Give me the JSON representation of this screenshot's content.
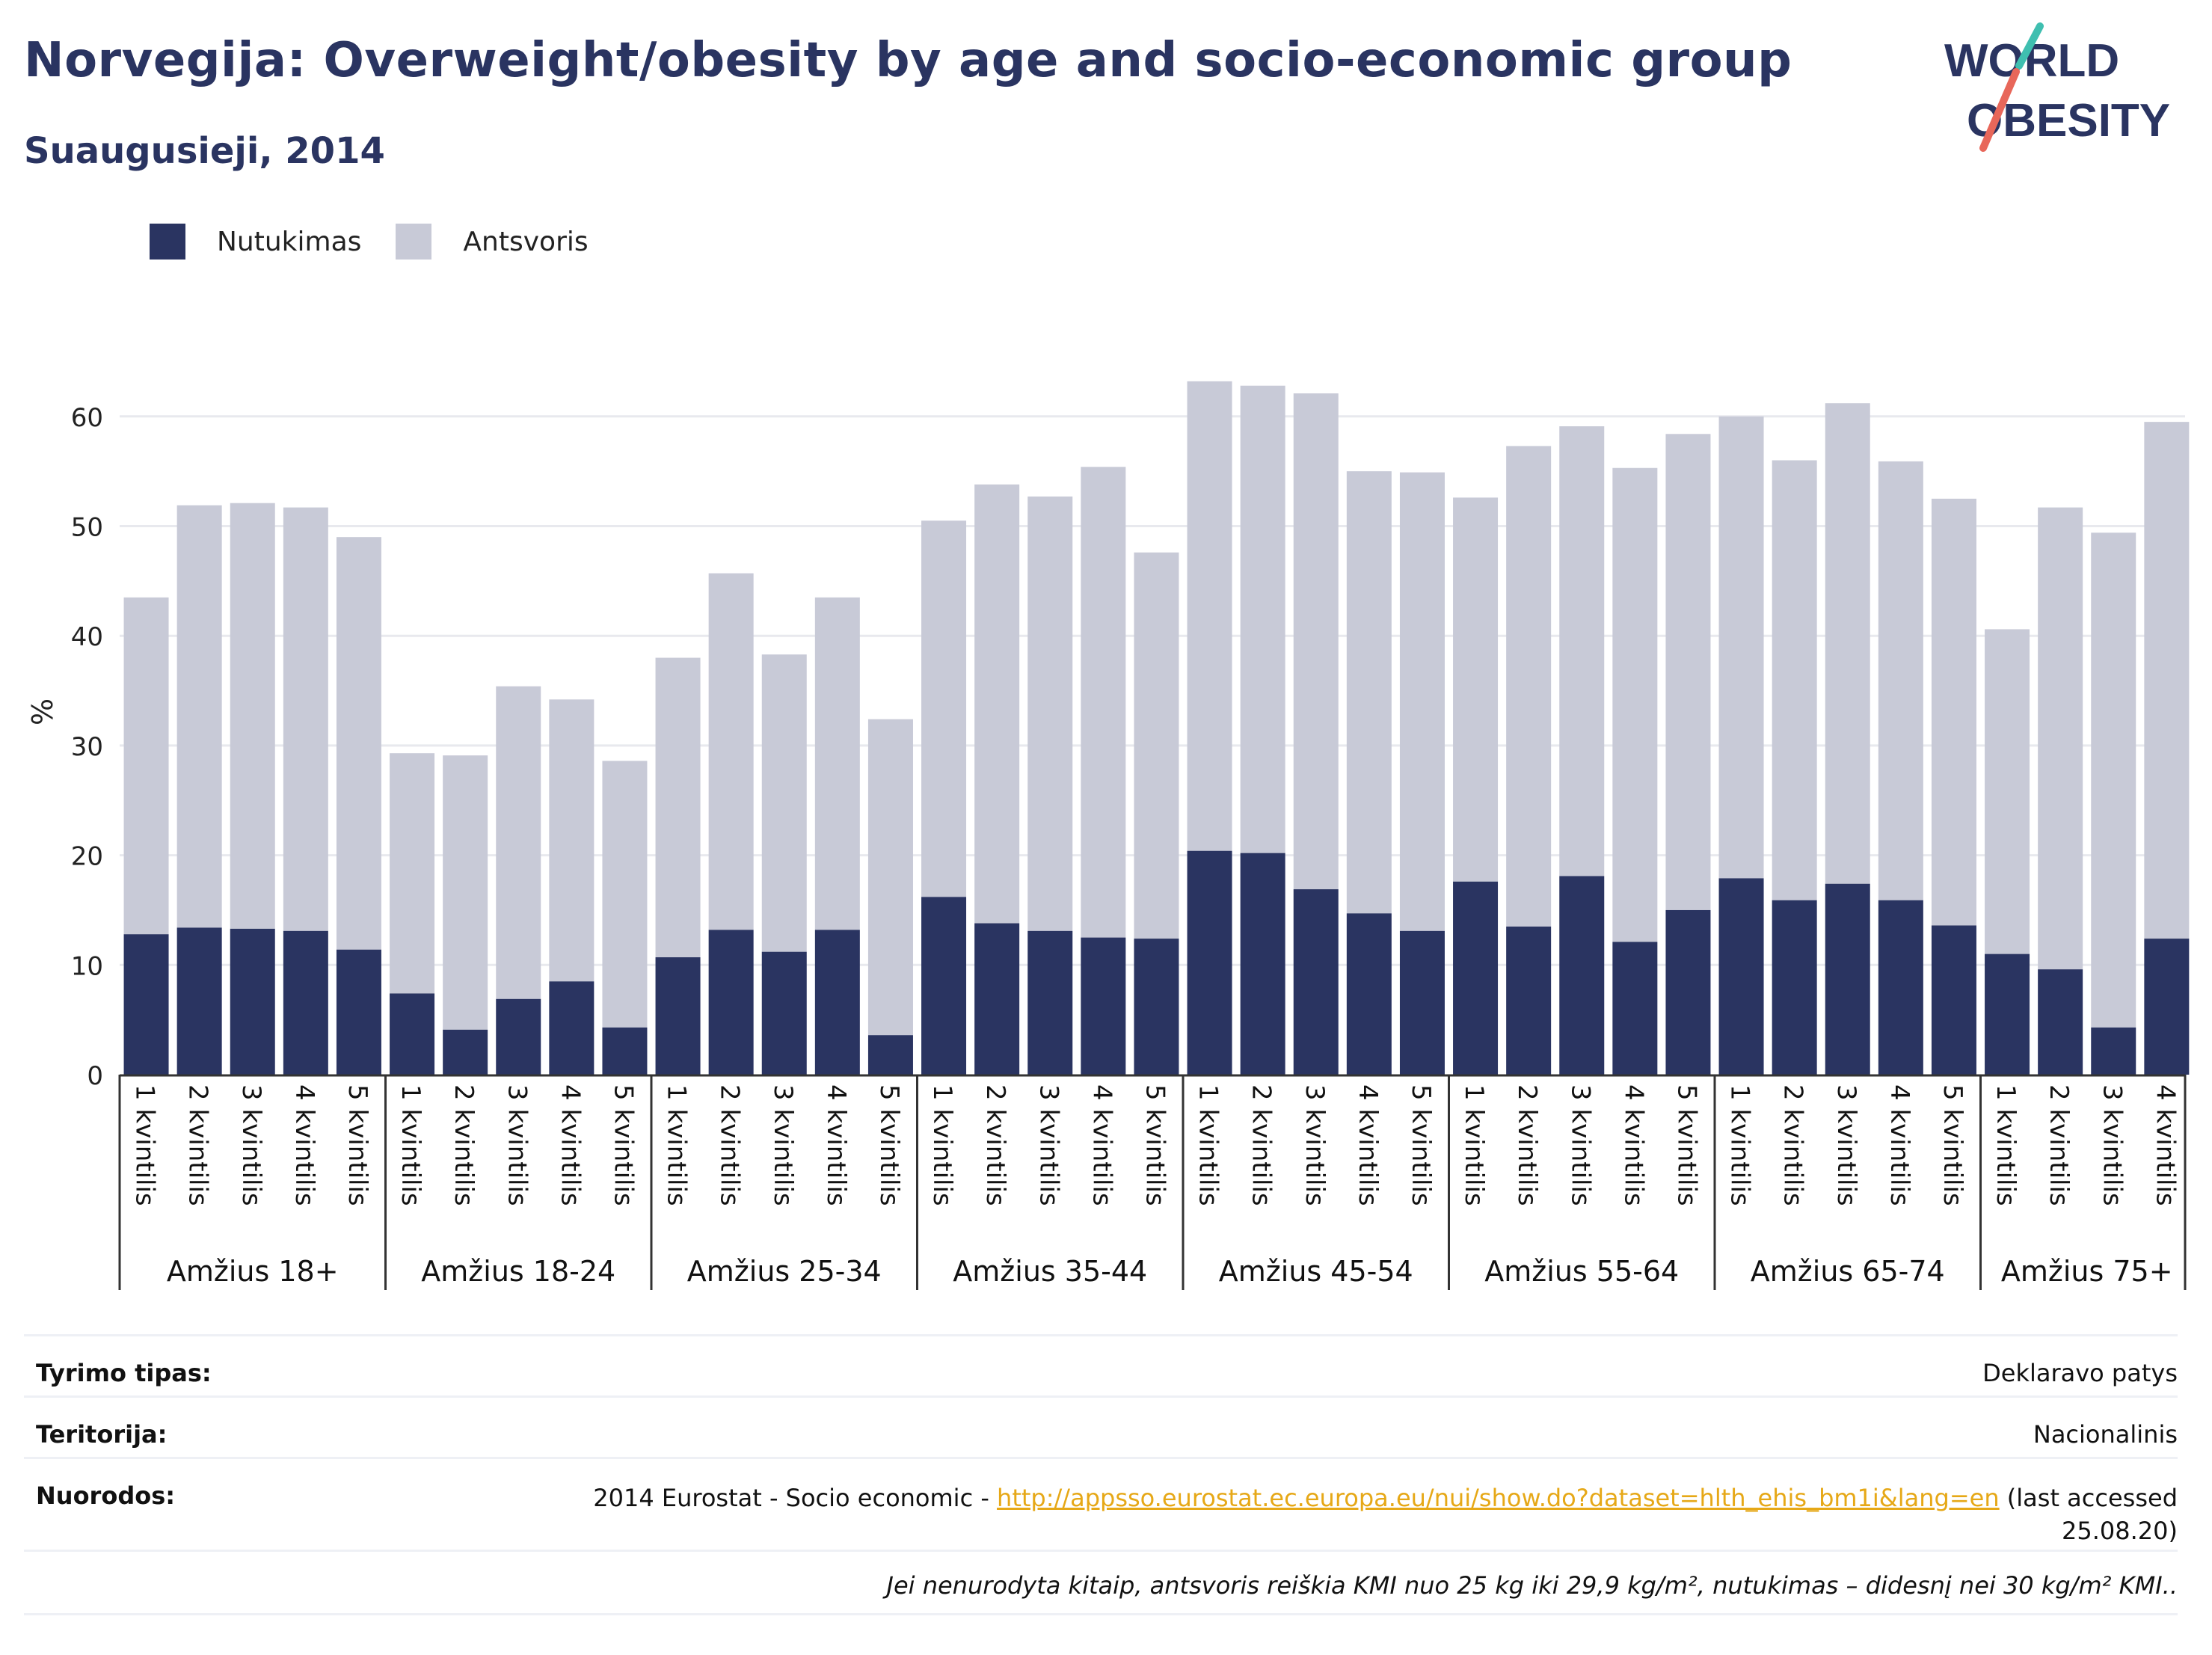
{
  "header": {
    "title": "Norvegija: Overweight/obesity by age and socio-economic group",
    "subtitle": "Suaugusieji, 2014"
  },
  "logo": {
    "line1": "WORLD",
    "line2": "OBESITY"
  },
  "colors": {
    "obesity": "#2a3461",
    "overweight": "#c8cad7",
    "title": "#2a3461",
    "link": "#e6a817"
  },
  "chart_data": {
    "type": "bar",
    "stacked": true,
    "ylabel": "%",
    "ylim": [
      0,
      65
    ],
    "yticks": [
      0,
      10,
      20,
      30,
      40,
      50,
      60
    ],
    "grid": true,
    "legend_position": "top-left",
    "groups": [
      {
        "label": "Amžius 18+",
        "categories": [
          "1 kvintilis",
          "2 kvintilis",
          "3 kvintilis",
          "4 kvintilis",
          "5 kvintilis"
        ]
      },
      {
        "label": "Amžius 18-24",
        "categories": [
          "1 kvintilis",
          "2 kvintilis",
          "3 kvintilis",
          "4 kvintilis",
          "5 kvintilis"
        ]
      },
      {
        "label": "Amžius 25-34",
        "categories": [
          "1 kvintilis",
          "2 kvintilis",
          "3 kvintilis",
          "4 kvintilis",
          "5 kvintilis"
        ]
      },
      {
        "label": "Amžius 35-44",
        "categories": [
          "1 kvintilis",
          "2 kvintilis",
          "3 kvintilis",
          "4 kvintilis",
          "5 kvintilis"
        ]
      },
      {
        "label": "Amžius 45-54",
        "categories": [
          "1 kvintilis",
          "2 kvintilis",
          "3 kvintilis",
          "4 kvintilis",
          "5 kvintilis"
        ]
      },
      {
        "label": "Amžius 55-64",
        "categories": [
          "1 kvintilis",
          "2 kvintilis",
          "3 kvintilis",
          "4 kvintilis",
          "5 kvintilis"
        ]
      },
      {
        "label": "Amžius 65-74",
        "categories": [
          "1 kvintilis",
          "2 kvintilis",
          "3 kvintilis",
          "4 kvintilis",
          "5 kvintilis"
        ]
      },
      {
        "label": "Amžius 75+",
        "categories": [
          "1 kvintilis",
          "2 kvintilis",
          "3 kvintilis",
          "4 kvintilis"
        ]
      }
    ],
    "series": [
      {
        "name": "Nutukimas",
        "values": [
          12.8,
          13.4,
          13.3,
          13.1,
          11.4,
          7.4,
          4.1,
          6.9,
          8.5,
          4.3,
          10.7,
          13.2,
          11.2,
          13.2,
          3.6,
          16.2,
          13.8,
          13.1,
          12.5,
          12.4,
          20.4,
          20.2,
          16.9,
          14.7,
          13.1,
          17.6,
          13.5,
          18.1,
          12.1,
          15.0,
          17.9,
          15.9,
          17.4,
          15.9,
          13.6,
          11.0,
          9.6,
          4.3,
          12.4
        ]
      },
      {
        "name": "Antsvoris",
        "values": [
          30.7,
          38.5,
          38.8,
          38.6,
          37.6,
          21.9,
          25.0,
          28.5,
          25.7,
          24.3,
          27.3,
          32.5,
          27.1,
          30.3,
          28.8,
          34.3,
          40.0,
          39.6,
          42.9,
          35.2,
          42.8,
          42.6,
          45.2,
          40.3,
          41.8,
          35.0,
          43.8,
          41.0,
          43.2,
          43.4,
          42.1,
          40.1,
          43.8,
          40.0,
          38.9,
          29.6,
          42.1,
          45.1,
          47.1
        ]
      }
    ]
  },
  "info": {
    "rows": [
      {
        "key": "Tyrimo tipas:",
        "value": "Deklaravo patys"
      },
      {
        "key": "Teritorija:",
        "value": "Nacionalinis"
      },
      {
        "key": "Nuorodos:",
        "value_prefix": "2014 Eurostat - Socio economic - ",
        "link": "http://appsso.eurostat.ec.europa.eu/nui/show.do?dataset=hlth_ehis_bm1i&lang=en",
        "value_suffix": " (last accessed",
        "value_line2": "25.08.20)"
      }
    ],
    "note": "Jei nenurodyta kitaip, antsvoris reiškia KMI nuo 25 kg iki 29,9 kg/m², nutukimas – didesnį nei 30 kg/m² KMI.."
  }
}
